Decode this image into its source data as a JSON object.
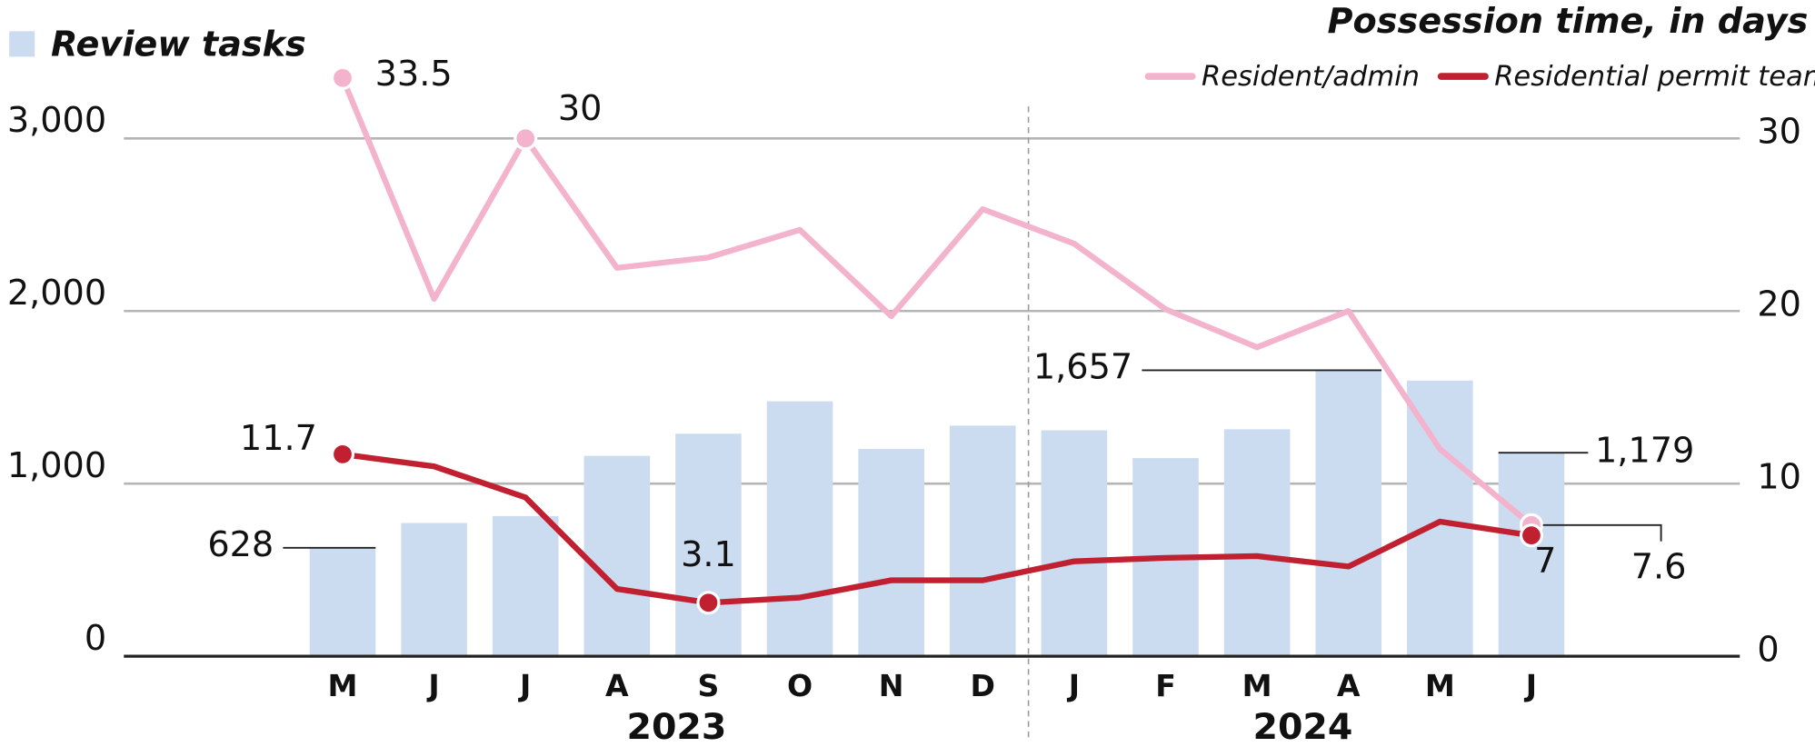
{
  "chart_data": {
    "type": "bar-line",
    "categories": [
      "M",
      "J",
      "J",
      "A",
      "S",
      "O",
      "N",
      "D",
      "J",
      "F",
      "M",
      "A",
      "M",
      "J"
    ],
    "year_labels": [
      "2023",
      "2024"
    ],
    "bars": {
      "name": "Review tasks",
      "color": "#ccdcf0",
      "values": [
        628,
        772,
        812,
        1161,
        1289,
        1477,
        1201,
        1336,
        1309,
        1148,
        1315,
        1657,
        1597,
        1179
      ],
      "value_labels": [
        "628",
        null,
        null,
        null,
        null,
        null,
        null,
        null,
        null,
        null,
        null,
        "1,657",
        null,
        "1,179"
      ]
    },
    "y2label": "Possession time, in days",
    "series": [
      {
        "name": "Resident/admin",
        "color": "#f4b3cd",
        "axis": "y2",
        "values": [
          33.5,
          20.7,
          30,
          22.5,
          23.1,
          24.7,
          19.7,
          25.9,
          23.9,
          20.1,
          17.9,
          20.0,
          12.0,
          7.6
        ],
        "value_labels": [
          "33.5",
          null,
          "30",
          null,
          null,
          null,
          null,
          null,
          null,
          null,
          null,
          null,
          null,
          "7.6"
        ]
      },
      {
        "name": "Residential permit team",
        "color": "#c0202f",
        "axis": "y2",
        "values": [
          11.7,
          11.0,
          9.2,
          3.9,
          3.1,
          3.4,
          4.4,
          4.4,
          5.5,
          5.7,
          5.8,
          5.2,
          7.8,
          7
        ],
        "value_labels": [
          "11.7",
          null,
          null,
          null,
          "3.1",
          null,
          null,
          null,
          null,
          null,
          null,
          null,
          null,
          "7"
        ]
      }
    ],
    "ylim": [
      0,
      3500
    ],
    "yticks": [
      0,
      {
        "value": 1000,
        "label": "1,000"
      },
      {
        "value": 2000,
        "label": "2,000"
      },
      {
        "value": 3000,
        "label": "3,000"
      }
    ],
    "y2lim": [
      0,
      35
    ],
    "y2ticks": [
      0,
      10,
      20,
      30
    ],
    "grid": true
  }
}
